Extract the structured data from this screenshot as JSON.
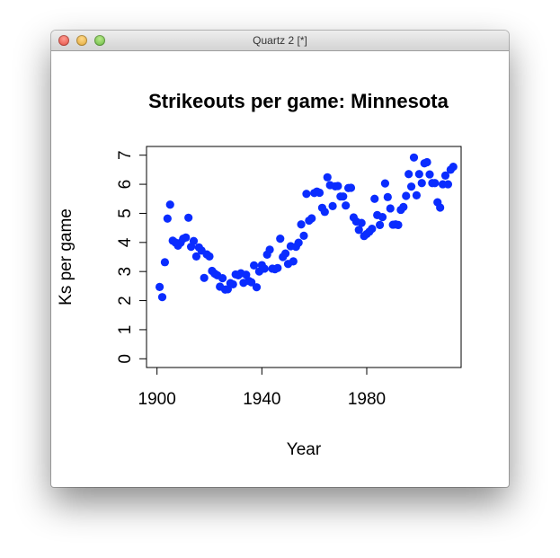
{
  "window": {
    "title": "Quartz 2 [*]"
  },
  "colors": {
    "points": "#0a2cff",
    "axis": "#000000"
  },
  "chart_data": {
    "type": "scatter",
    "title": "Strikeouts per game: Minnesota",
    "xlabel": "Year",
    "ylabel": "Ks per game",
    "xlim": [
      1896,
      2016
    ],
    "ylim": [
      -0.3,
      7.3
    ],
    "x_ticks": [
      1900,
      1940,
      1980
    ],
    "y_ticks": [
      0,
      1,
      2,
      3,
      4,
      5,
      6,
      7
    ],
    "grid": false,
    "series": [
      {
        "color": "#0a2cff",
        "points": [
          [
            1901,
            2.47
          ],
          [
            1902,
            2.12
          ],
          [
            1903,
            3.32
          ],
          [
            1904,
            4.82
          ],
          [
            1905,
            5.3
          ],
          [
            1906,
            4.06
          ],
          [
            1907,
            4.0
          ],
          [
            1908,
            3.89
          ],
          [
            1909,
            3.99
          ],
          [
            1910,
            4.13
          ],
          [
            1911,
            4.17
          ],
          [
            1912,
            4.85
          ],
          [
            1913,
            3.85
          ],
          [
            1914,
            4.05
          ],
          [
            1915,
            3.52
          ],
          [
            1916,
            3.83
          ],
          [
            1917,
            3.72
          ],
          [
            1918,
            2.78
          ],
          [
            1919,
            3.59
          ],
          [
            1920,
            3.52
          ],
          [
            1921,
            3.02
          ],
          [
            1922,
            2.93
          ],
          [
            1923,
            2.87
          ],
          [
            1924,
            2.48
          ],
          [
            1925,
            2.77
          ],
          [
            1926,
            2.38
          ],
          [
            1927,
            2.39
          ],
          [
            1928,
            2.6
          ],
          [
            1929,
            2.56
          ],
          [
            1930,
            2.9
          ],
          [
            1931,
            2.87
          ],
          [
            1932,
            2.94
          ],
          [
            1933,
            2.61
          ],
          [
            1934,
            2.89
          ],
          [
            1935,
            2.68
          ],
          [
            1936,
            2.63
          ],
          [
            1937,
            3.21
          ],
          [
            1938,
            2.46
          ],
          [
            1939,
            3.0
          ],
          [
            1940,
            3.22
          ],
          [
            1941,
            3.1
          ],
          [
            1942,
            3.58
          ],
          [
            1943,
            3.75
          ],
          [
            1944,
            3.1
          ],
          [
            1945,
            3.08
          ],
          [
            1946,
            3.12
          ],
          [
            1947,
            4.13
          ],
          [
            1948,
            3.5
          ],
          [
            1949,
            3.62
          ],
          [
            1950,
            3.26
          ],
          [
            1951,
            3.87
          ],
          [
            1952,
            3.35
          ],
          [
            1953,
            3.85
          ],
          [
            1954,
            3.99
          ],
          [
            1955,
            4.62
          ],
          [
            1956,
            4.23
          ],
          [
            1957,
            5.67
          ],
          [
            1958,
            4.75
          ],
          [
            1959,
            4.83
          ],
          [
            1960,
            5.7
          ],
          [
            1961,
            5.75
          ],
          [
            1962,
            5.71
          ],
          [
            1963,
            5.19
          ],
          [
            1964,
            5.05
          ],
          [
            1965,
            6.24
          ],
          [
            1966,
            5.97
          ],
          [
            1967,
            5.25
          ],
          [
            1968,
            5.93
          ],
          [
            1969,
            5.94
          ],
          [
            1970,
            5.58
          ],
          [
            1971,
            5.58
          ],
          [
            1972,
            5.27
          ],
          [
            1973,
            5.87
          ],
          [
            1974,
            5.88
          ],
          [
            1975,
            4.86
          ],
          [
            1976,
            4.72
          ],
          [
            1977,
            4.43
          ],
          [
            1978,
            4.67
          ],
          [
            1979,
            4.22
          ],
          [
            1980,
            4.29
          ],
          [
            1981,
            4.37
          ],
          [
            1982,
            4.47
          ],
          [
            1983,
            5.5
          ],
          [
            1984,
            4.94
          ],
          [
            1985,
            4.6
          ],
          [
            1986,
            4.87
          ],
          [
            1987,
            6.03
          ],
          [
            1988,
            5.56
          ],
          [
            1989,
            5.17
          ],
          [
            1990,
            4.61
          ],
          [
            1991,
            4.62
          ],
          [
            1992,
            4.6
          ],
          [
            1993,
            5.12
          ],
          [
            1994,
            5.22
          ],
          [
            1995,
            5.6
          ],
          [
            1996,
            6.35
          ],
          [
            1997,
            5.92
          ],
          [
            1998,
            6.92
          ],
          [
            1999,
            5.62
          ],
          [
            2000,
            6.35
          ],
          [
            2001,
            6.04
          ],
          [
            2002,
            6.72
          ],
          [
            2003,
            6.76
          ],
          [
            2004,
            6.34
          ],
          [
            2005,
            6.04
          ],
          [
            2006,
            6.04
          ],
          [
            2007,
            5.38
          ],
          [
            2008,
            5.2
          ],
          [
            2009,
            6.0
          ],
          [
            2010,
            6.3
          ],
          [
            2011,
            6.0
          ],
          [
            2012,
            6.5
          ],
          [
            2013,
            6.6
          ]
        ]
      }
    ]
  }
}
